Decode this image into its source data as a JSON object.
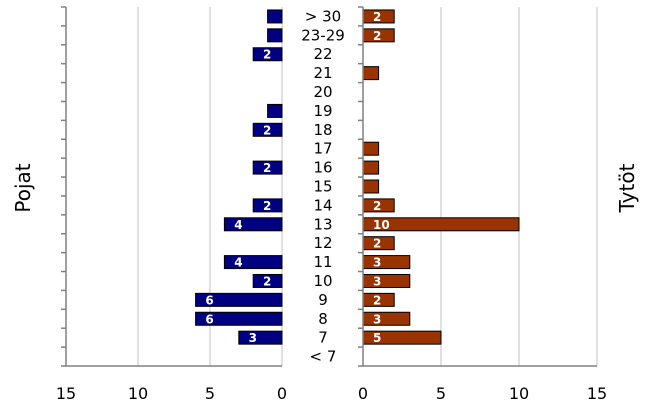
{
  "chart_data": {
    "type": "bar",
    "orientation": "horizontal",
    "layout": "back-to-back",
    "categories": [
      "> 30",
      "23-29",
      "22",
      "21",
      "20",
      "19",
      "18",
      "17",
      "16",
      "15",
      "14",
      "13",
      "12",
      "11",
      "10",
      "9",
      "8",
      "7",
      "< 7"
    ],
    "series": [
      {
        "name": "Pojat",
        "color": "#000080",
        "side": "left",
        "values": [
          1,
          1,
          2,
          0,
          0,
          1,
          2,
          0,
          2,
          0,
          2,
          4,
          0,
          4,
          2,
          6,
          6,
          3,
          0
        ],
        "labels": [
          "",
          "",
          "2",
          "",
          "",
          "",
          "2",
          "",
          "2",
          "",
          "2",
          "4",
          "",
          "4",
          "2",
          "6",
          "6",
          "3",
          ""
        ]
      },
      {
        "name": "Tytöt",
        "color": "#993300",
        "side": "right",
        "values": [
          2,
          2,
          0,
          1,
          0,
          0,
          0,
          1,
          1,
          1,
          2,
          10,
          2,
          3,
          3,
          2,
          3,
          5,
          0
        ],
        "labels": [
          "2",
          "2",
          "",
          "",
          "",
          "",
          "",
          "",
          "",
          "",
          "2",
          "10",
          "2",
          "3",
          "3",
          "2",
          "3",
          "5",
          ""
        ]
      }
    ],
    "left_axis": {
      "ticks": [
        "15",
        "10",
        "5",
        "0"
      ],
      "range": [
        15,
        0
      ]
    },
    "right_axis": {
      "ticks": [
        "0",
        "5",
        "10",
        "15"
      ],
      "range": [
        0,
        15
      ]
    },
    "grid": true
  }
}
